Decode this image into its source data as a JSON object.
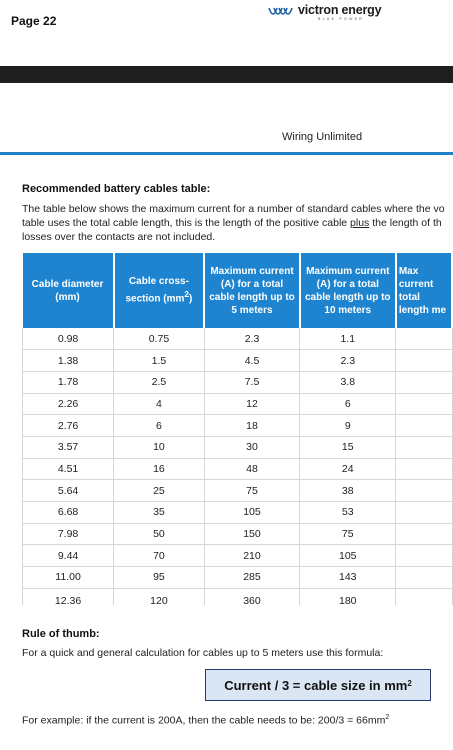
{
  "header": {
    "page_label": "Page 22",
    "brand": "victron energy",
    "brand_tagline": "BLUE POWER"
  },
  "section": {
    "title": "Wiring Unlimited"
  },
  "content": {
    "heading": "Recommended battery cables table:",
    "intro_line1": "The table below shows the maximum current for a number of standard cables where the vo",
    "intro_line2_pre": "table uses the total cable length, this is the length of the positive cable ",
    "intro_line2_underlined": "plus",
    "intro_line2_post": " the length of th",
    "intro_line3": "losses over the contacts are not included."
  },
  "table": {
    "headers": [
      "Cable diameter (mm)",
      "Cable cross-section (mm2)",
      "Maximum current (A) for a total cable length up to 5 meters",
      "Maximum current (A) for a total cable length up to 10 meters",
      "Max current total length me"
    ],
    "header_parts": {
      "col1": "Cable diameter (mm)",
      "col2_pre": "Cable cross-section (mm",
      "col2_sup": "2",
      "col2_post": ")",
      "col3": "Maximum current (A) for a total cable length up to 5 meters",
      "col4": "Maximum current (A) for a total cable length up to 10 meters",
      "col5": "Max current total length me"
    },
    "rows": [
      [
        "0.98",
        "0.75",
        "2.3",
        "1.1",
        ""
      ],
      [
        "1.38",
        "1.5",
        "4.5",
        "2.3",
        ""
      ],
      [
        "1.78",
        "2.5",
        "7.5",
        "3.8",
        ""
      ],
      [
        "2.26",
        "4",
        "12",
        "6",
        ""
      ],
      [
        "2.76",
        "6",
        "18",
        "9",
        ""
      ],
      [
        "3.57",
        "10",
        "30",
        "15",
        ""
      ],
      [
        "4.51",
        "16",
        "48",
        "24",
        ""
      ],
      [
        "5.64",
        "25",
        "75",
        "38",
        ""
      ],
      [
        "6.68",
        "35",
        "105",
        "53",
        ""
      ],
      [
        "7.98",
        "50",
        "150",
        "75",
        ""
      ],
      [
        "9.44",
        "70",
        "210",
        "105",
        ""
      ],
      [
        "11.00",
        "95",
        "285",
        "143",
        ""
      ],
      [
        "12.36",
        "120",
        "360",
        "180",
        ""
      ]
    ]
  },
  "rule": {
    "heading": "Rule of thumb:",
    "text": "For a quick and general calculation for cables up to 5 meters use this formula:",
    "formula_main": "Current / 3 = cable size in mm",
    "formula_sup": "2",
    "example_main": "For example: if the current is 200A, then the cable needs to be:  200/3 = 66mm",
    "example_sup": "2"
  },
  "colors": {
    "accent_blue": "#1f84cf",
    "rule_blue": "#1f7fc4",
    "dark_bar": "#1f1f1f",
    "formula_bg": "#dbe6f4"
  }
}
